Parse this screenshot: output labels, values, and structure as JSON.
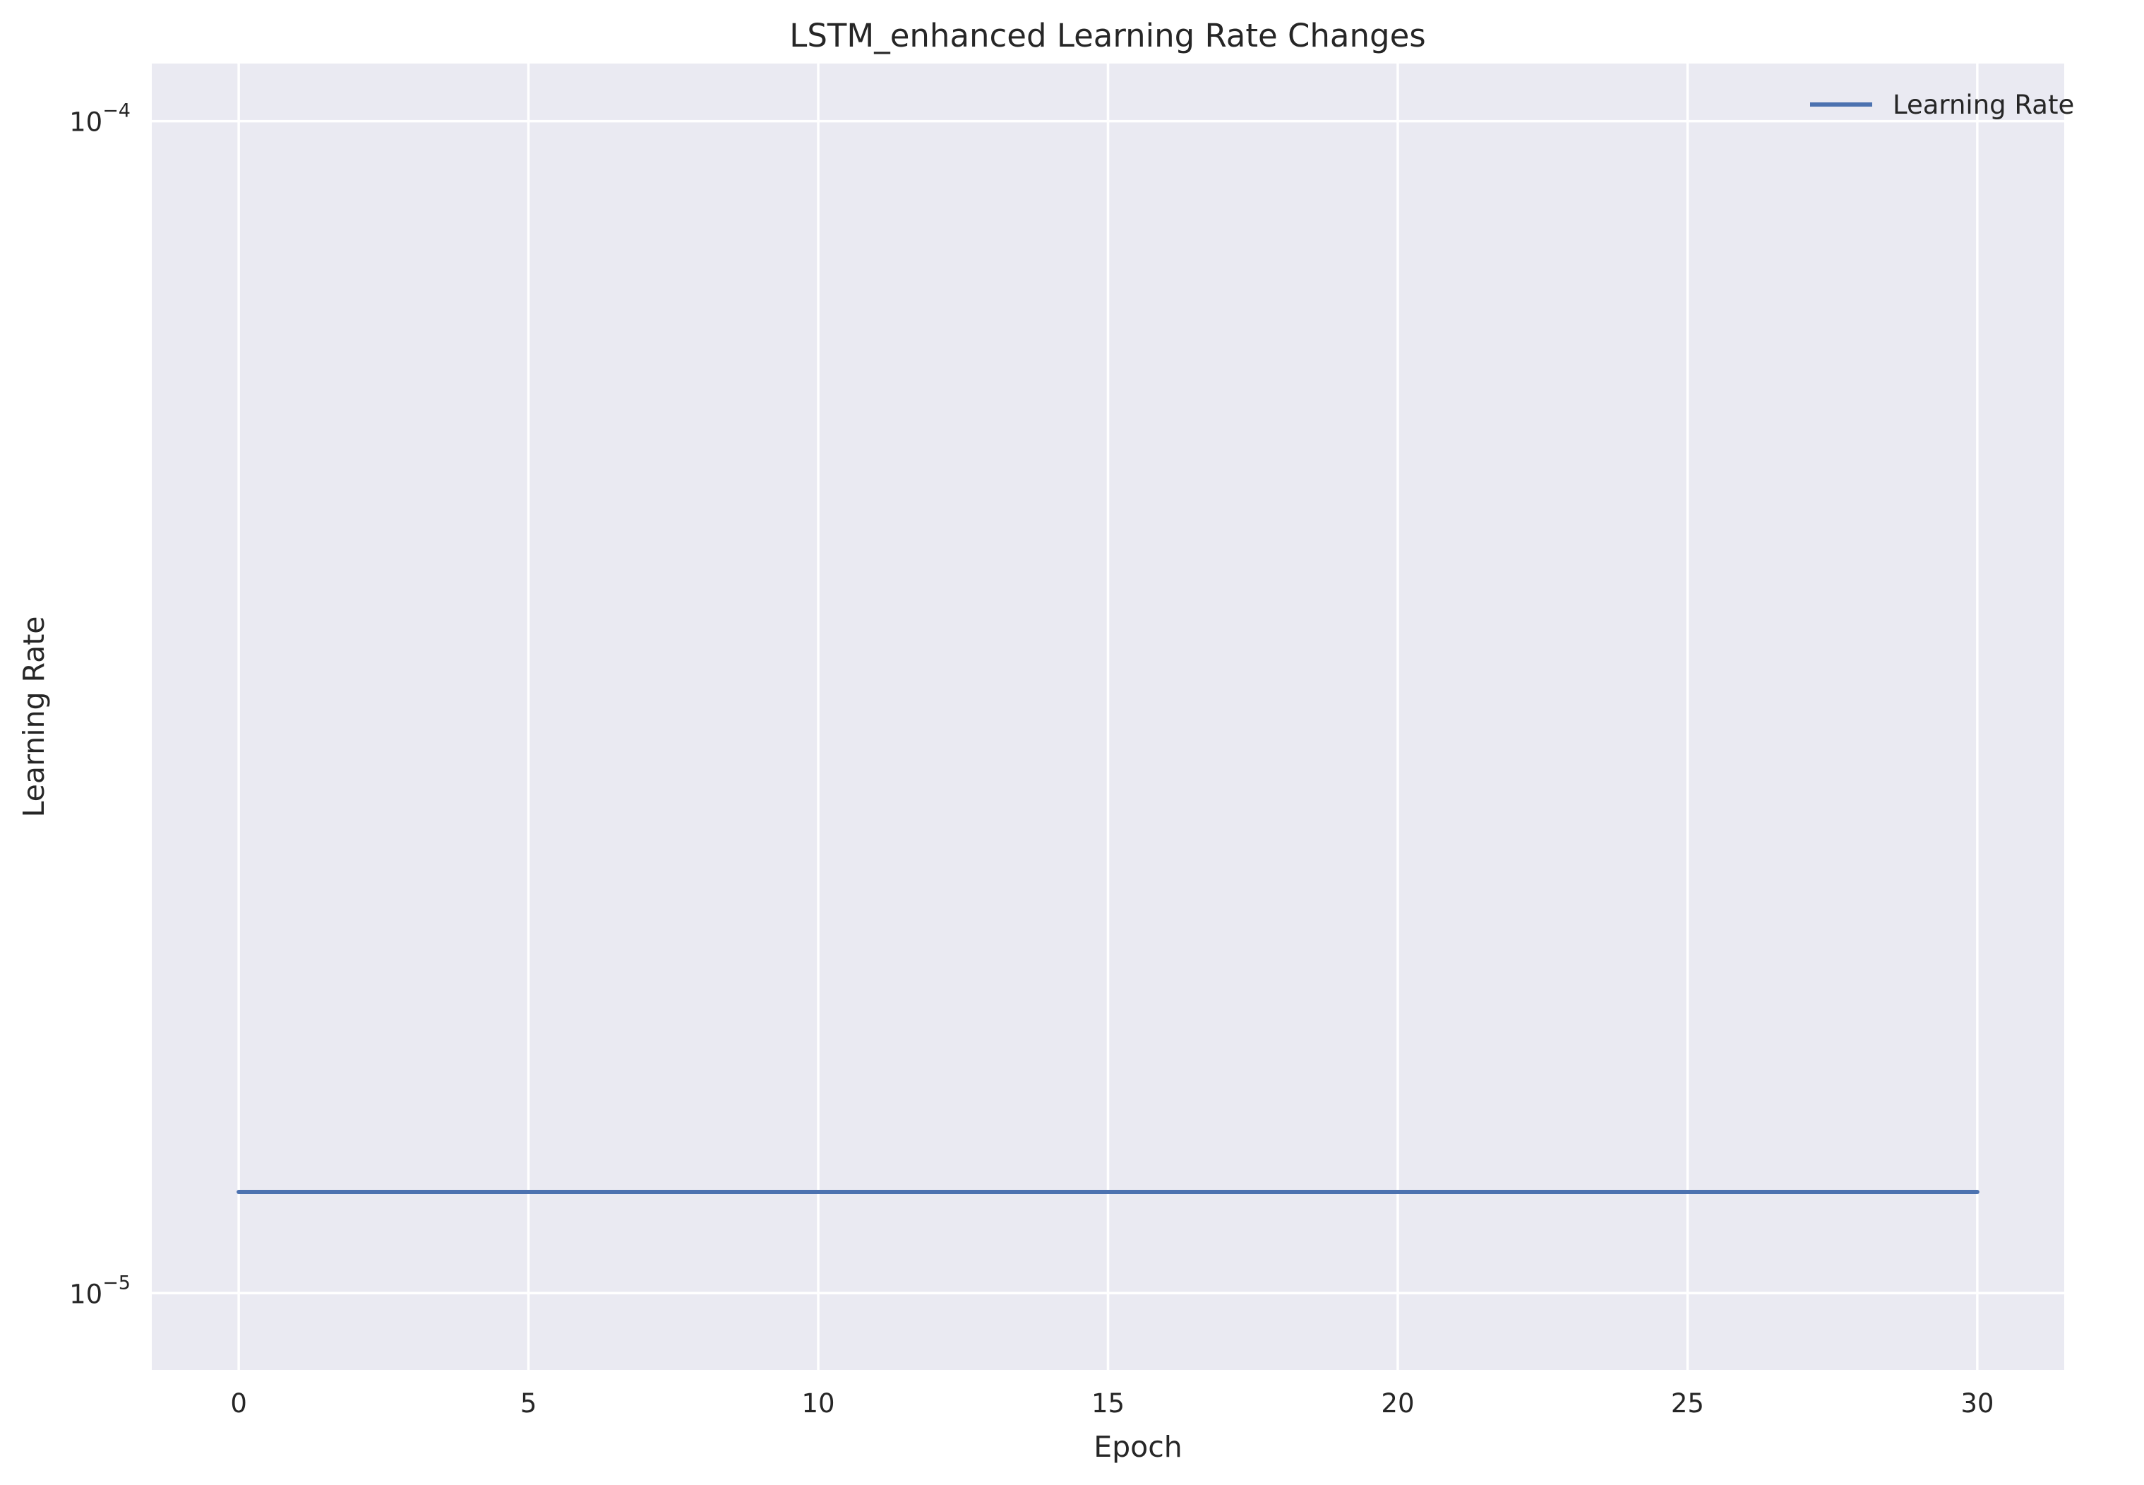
{
  "chart_data": {
    "type": "line",
    "title": "LSTM_enhanced Learning Rate Changes",
    "xlabel": "Epoch",
    "ylabel": "Learning Rate",
    "xlim": [
      -1.5,
      31.5
    ],
    "ylim": [
      8.6e-06,
      0.000112
    ],
    "yscale": "log",
    "grid": true,
    "legend_position": "top-right",
    "background_color": "#eaeaf2",
    "grid_color": "#ffffff",
    "x_ticks": [
      {
        "value": 0,
        "label": "0"
      },
      {
        "value": 5,
        "label": "5"
      },
      {
        "value": 10,
        "label": "10"
      },
      {
        "value": 15,
        "label": "15"
      },
      {
        "value": 20,
        "label": "20"
      },
      {
        "value": 25,
        "label": "25"
      },
      {
        "value": 30,
        "label": "30"
      }
    ],
    "y_ticks": [
      {
        "value": 0.0001,
        "base": "10",
        "exponent": "−4"
      },
      {
        "value": 1e-05,
        "base": "10",
        "exponent": "−5"
      }
    ],
    "series": [
      {
        "name": "Learning Rate",
        "color": "#4c72b0",
        "x": [
          0,
          1,
          2,
          3,
          4,
          5,
          6,
          7,
          8,
          9,
          10,
          11,
          12,
          13,
          14,
          15,
          16,
          17,
          18,
          19,
          20,
          21,
          22,
          23,
          24,
          25,
          26,
          27,
          28,
          29,
          30
        ],
        "y": [
          1.22e-05,
          1.22e-05,
          1.22e-05,
          1.22e-05,
          1.22e-05,
          1.22e-05,
          1.22e-05,
          1.22e-05,
          1.22e-05,
          1.22e-05,
          1.22e-05,
          1.22e-05,
          1.22e-05,
          1.22e-05,
          1.22e-05,
          1.22e-05,
          1.22e-05,
          1.22e-05,
          1.22e-05,
          1.22e-05,
          1.22e-05,
          1.22e-05,
          1.22e-05,
          1.22e-05,
          1.22e-05,
          1.22e-05,
          1.22e-05,
          1.22e-05,
          1.22e-05,
          1.22e-05,
          1.22e-05
        ]
      }
    ]
  }
}
